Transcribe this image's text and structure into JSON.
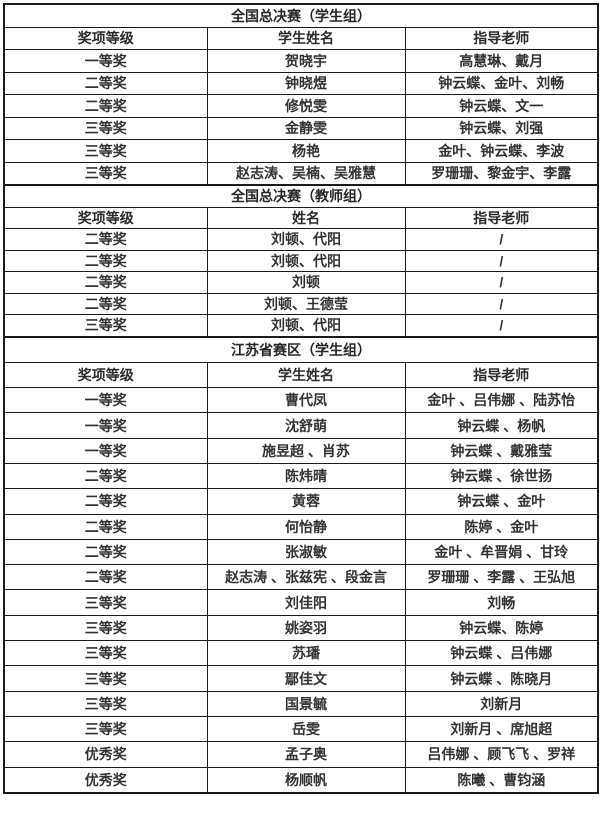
{
  "style": {
    "text_color": "#333333",
    "border_color": "#1b1b1b",
    "background": "#ffffff"
  },
  "sections": [
    {
      "title": "全国总决赛（学生组）",
      "headers": [
        "奖项等级",
        "学生姓名",
        "指导老师"
      ],
      "rows": [
        [
          "一等奖",
          "贺晓宇",
          "高慧琳、戴月"
        ],
        [
          "二等奖",
          "钟晓煜",
          "钟云蝶、金叶、刘畅"
        ],
        [
          "二等奖",
          "修悦雯",
          "钟云蝶、文一"
        ],
        [
          "三等奖",
          "金静雯",
          "钟云蝶、刘强"
        ],
        [
          "三等奖",
          "杨艳",
          "金叶、钟云蝶、李波"
        ],
        [
          "三等奖",
          "赵志涛、吴楠、吴雅慧",
          "罗珊珊、黎金宇、李露"
        ]
      ]
    },
    {
      "title": "全国总决赛（教师组）",
      "headers": [
        "奖项等级",
        "姓名",
        "指导老师"
      ],
      "rows": [
        [
          "二等奖",
          "刘顿、代阳",
          "/"
        ],
        [
          "二等奖",
          "刘顿、代阳",
          "/"
        ],
        [
          "二等奖",
          "刘顿",
          "/"
        ],
        [
          "二等奖",
          "刘顿、王德莹",
          "/"
        ],
        [
          "三等奖",
          "刘顿、代阳",
          "/"
        ]
      ]
    },
    {
      "title": "江苏省赛区（学生组）",
      "headers": [
        "奖项等级",
        "学生姓名",
        "指导老师"
      ],
      "rows": [
        [
          "一等奖",
          "曹代凤",
          "金叶 、吕伟娜 、陆苏怡"
        ],
        [
          "一等奖",
          "沈舒萌",
          "钟云蝶 、杨帆"
        ],
        [
          "一等奖",
          "施昱超 、肖苏",
          "钟云蝶 、戴雅莹"
        ],
        [
          "二等奖",
          "陈炜晴",
          "钟云蝶 、徐世扬"
        ],
        [
          "二等奖",
          "黄蓉",
          "钟云蝶 、金叶"
        ],
        [
          "二等奖",
          "何怡静",
          "陈婷 、金叶"
        ],
        [
          "二等奖",
          "张淑敏",
          "金叶 、牟晋娟 、甘玲"
        ],
        [
          "二等奖",
          "赵志涛 、张兹宪 、段金言",
          "罗珊珊 、李露 、王弘旭"
        ],
        [
          "三等奖",
          "刘佳阳",
          "刘畅"
        ],
        [
          "三等奖",
          "姚姿羽",
          "钟云蝶、陈婷"
        ],
        [
          "三等奖",
          "苏璠",
          "钟云蝶 、吕伟娜"
        ],
        [
          "三等奖",
          "鄢佳文",
          "钟云蝶 、陈晓月"
        ],
        [
          "三等奖",
          "国景毓",
          "刘新月"
        ],
        [
          "三等奖",
          "岳雯",
          "刘新月 、席旭超"
        ],
        [
          "优秀奖",
          "孟子奥",
          "吕伟娜 、顾飞飞 、罗祥"
        ],
        [
          "优秀奖",
          "杨顺帆",
          "陈曦 、曹钧涵"
        ]
      ]
    }
  ]
}
